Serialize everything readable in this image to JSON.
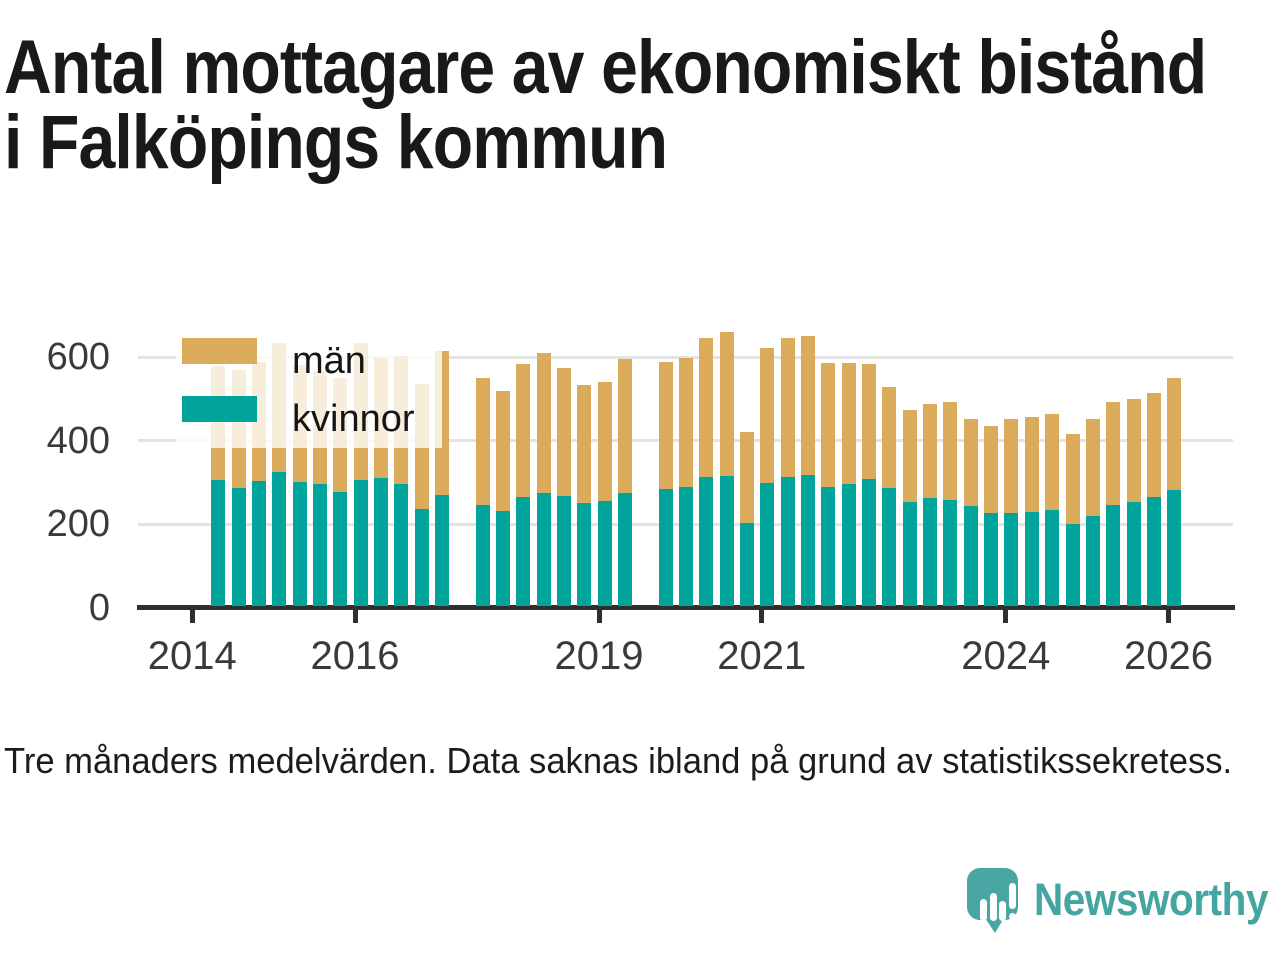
{
  "title": {
    "line1": "Antal mottagare av ekonomiskt bistånd",
    "line2": "i Falköpings kommun"
  },
  "footnote": "Tre månaders medelvärden. Data saknas ibland på grund av statistikssekretess.",
  "branding": {
    "wordmark": "Newsworthy"
  },
  "colors": {
    "man": "#d9ab5b",
    "kvinnor": "#00a49b",
    "axis": "#2f2f2f",
    "gridline": "#e3e3e3",
    "brand_teal": "#4aa6a2"
  },
  "legend": {
    "items": [
      {
        "label": "män",
        "series": "man"
      },
      {
        "label": "kvinnor",
        "series": "kvinnor"
      }
    ]
  },
  "chart_data": {
    "type": "bar",
    "stacked": true,
    "title": "Antal mottagare av ekonomiskt bistånd i Falköpings kommun",
    "xlabel": "",
    "ylabel": "",
    "x_unit": "quarter (tre månaders medelvärden)",
    "categories": [
      "2014 Q2",
      "2014 Q3",
      "2014 Q4",
      "2015 Q1",
      "2015 Q2",
      "2015 Q3",
      "2015 Q4",
      "2016 Q1",
      "2016 Q2",
      "2016 Q3",
      "2016 Q4",
      "2017 Q1",
      "2017 Q2",
      "2017 Q3",
      "2017 Q4",
      "2018 Q1",
      "2018 Q2",
      "2018 Q3",
      "2018 Q4",
      "2019 Q1",
      "2019 Q2",
      "2019 Q3",
      "2019 Q4",
      "2020 Q1",
      "2020 Q2",
      "2020 Q3",
      "2020 Q4",
      "2021 Q1",
      "2021 Q2",
      "2021 Q3",
      "2021 Q4",
      "2022 Q1",
      "2022 Q2",
      "2022 Q3",
      "2022 Q4",
      "2023 Q1",
      "2023 Q2",
      "2023 Q3",
      "2023 Q4",
      "2024 Q1",
      "2024 Q2",
      "2024 Q3",
      "2024 Q4",
      "2025 Q1",
      "2025 Q2",
      "2025 Q3",
      "2025 Q4",
      "2026 Q1"
    ],
    "series": [
      {
        "name": "kvinnor",
        "color": "#00a49b",
        "values": [
          302,
          282,
          300,
          320,
          296,
          292,
          274,
          302,
          306,
          292,
          232,
          266,
          null,
          242,
          228,
          260,
          270,
          263,
          247,
          252,
          270,
          null,
          280,
          286,
          308,
          312,
          198,
          294,
          310,
          314,
          286,
          292,
          304,
          283,
          248,
          258,
          255,
          239,
          223,
          223,
          226,
          230,
          196,
          216,
          242,
          248,
          262,
          278
        ]
      },
      {
        "name": "män",
        "color": "#d9ab5b",
        "values": [
          274,
          283,
          285,
          311,
          282,
          271,
          273,
          329,
          289,
          307,
          299,
          345,
          null,
          303,
          287,
          319,
          336,
          306,
          282,
          285,
          321,
          null,
          305,
          309,
          333,
          345,
          219,
          323,
          331,
          332,
          295,
          291,
          275,
          241,
          222,
          226,
          233,
          209,
          209,
          224,
          227,
          229,
          215,
          233,
          247,
          247,
          249,
          269
        ]
      }
    ],
    "missing_categories": [
      "2017 Q2",
      "2019 Q3"
    ],
    "y_ticks": [
      0,
      200,
      400,
      600
    ],
    "x_tick_years": [
      2014,
      2016,
      2019,
      2021,
      2024,
      2026
    ],
    "ylim": [
      0,
      680
    ],
    "grid": true,
    "legend_position": "top-left-inside"
  }
}
